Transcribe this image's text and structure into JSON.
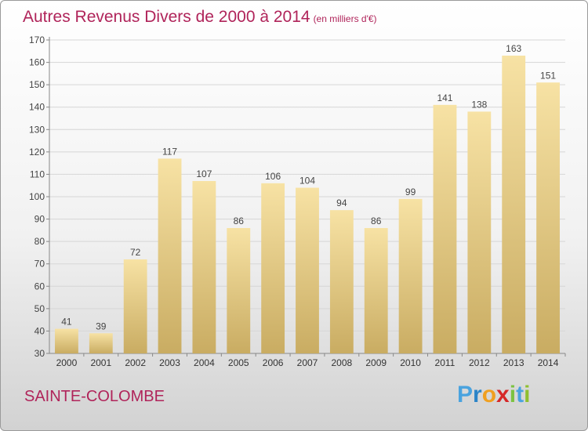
{
  "title": "Autres Revenus Divers de 2000 à 2014",
  "subtitle": "(en milliers d'€)",
  "city": "SAINTE-COLOMBE",
  "logo": {
    "letters": [
      "P",
      "r",
      "o",
      "x",
      "i",
      "t",
      "i"
    ],
    "colors": [
      "#4aa3df",
      "#2b84c8",
      "#f0a020",
      "#d62828",
      "#7cc242",
      "#4aa3df",
      "#8fbf30"
    ]
  },
  "colors": {
    "title": "#b0245a",
    "bar_top": "#f7e2a4",
    "bar_bottom": "#c9ac62"
  },
  "chart_data": {
    "type": "bar",
    "categories": [
      "2000",
      "2001",
      "2002",
      "2003",
      "2004",
      "2005",
      "2006",
      "2007",
      "2008",
      "2009",
      "2010",
      "2011",
      "2012",
      "2013",
      "2014"
    ],
    "values": [
      41,
      39,
      72,
      117,
      107,
      86,
      106,
      104,
      94,
      86,
      99,
      141,
      138,
      163,
      151
    ],
    "ylim": [
      30,
      170
    ],
    "yticks": [
      30,
      40,
      50,
      60,
      70,
      80,
      90,
      100,
      110,
      120,
      130,
      140,
      150,
      160,
      170
    ],
    "grid": true,
    "data_labels": true
  }
}
